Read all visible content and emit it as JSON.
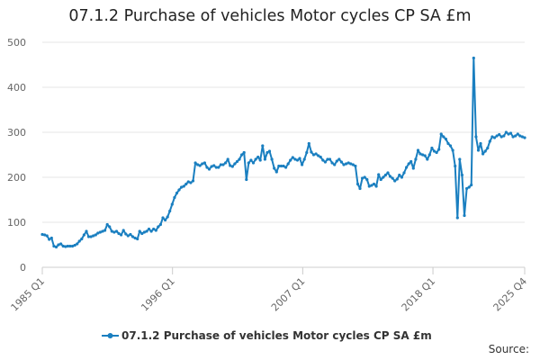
{
  "chart_data": {
    "type": "line",
    "title": "07.1.2 Purchase of vehicles Motor cycles CP SA £m",
    "xlabel": "",
    "ylabel": "",
    "ylim": [
      0,
      500
    ],
    "yticks": [
      0,
      100,
      200,
      300,
      400,
      500
    ],
    "xtick_labels": [
      "1985 Q1",
      "1996 Q1",
      "2007 Q1",
      "2018 Q1",
      "2025 Q4"
    ],
    "x_start": "1985 Q1",
    "x_end": "2025 Q4",
    "grid": true,
    "legend_position": "bottom",
    "source_label": "Source:",
    "series": [
      {
        "name": "07.1.2 Purchase of vehicles Motor cycles CP SA £m",
        "color": "#1a7fc0",
        "values": [
          73,
          72,
          70,
          62,
          65,
          47,
          45,
          50,
          52,
          47,
          46,
          47,
          47,
          47,
          49,
          52,
          58,
          63,
          72,
          80,
          68,
          68,
          70,
          72,
          76,
          78,
          80,
          82,
          95,
          90,
          80,
          78,
          80,
          75,
          72,
          82,
          74,
          70,
          73,
          68,
          65,
          63,
          80,
          75,
          78,
          80,
          85,
          80,
          85,
          82,
          90,
          95,
          110,
          105,
          112,
          125,
          140,
          155,
          165,
          172,
          178,
          180,
          185,
          190,
          188,
          192,
          232,
          228,
          226,
          230,
          232,
          222,
          218,
          224,
          226,
          222,
          222,
          228,
          228,
          232,
          240,
          226,
          224,
          230,
          235,
          240,
          250,
          255,
          195,
          232,
          238,
          232,
          240,
          245,
          238,
          270,
          240,
          255,
          258,
          240,
          220,
          212,
          225,
          225,
          225,
          222,
          230,
          238,
          244,
          240,
          238,
          242,
          228,
          240,
          255,
          275,
          256,
          250,
          252,
          248,
          245,
          238,
          234,
          240,
          240,
          232,
          228,
          236,
          240,
          234,
          228,
          230,
          232,
          230,
          228,
          225,
          185,
          175,
          198,
          200,
          195,
          180,
          182,
          185,
          180,
          206,
          195,
          200,
          205,
          210,
          202,
          198,
          192,
          196,
          205,
          200,
          210,
          222,
          230,
          235,
          220,
          240,
          260,
          252,
          250,
          248,
          240,
          250,
          265,
          258,
          255,
          262,
          296,
          290,
          285,
          275,
          270,
          260,
          225,
          110,
          240,
          205,
          115,
          175,
          178,
          183,
          465,
          290,
          260,
          275,
          252,
          258,
          265,
          280,
          290,
          288,
          292,
          295,
          290,
          292,
          300,
          296,
          298,
          290,
          292,
          296,
          292,
          290,
          288
        ]
      }
    ]
  }
}
